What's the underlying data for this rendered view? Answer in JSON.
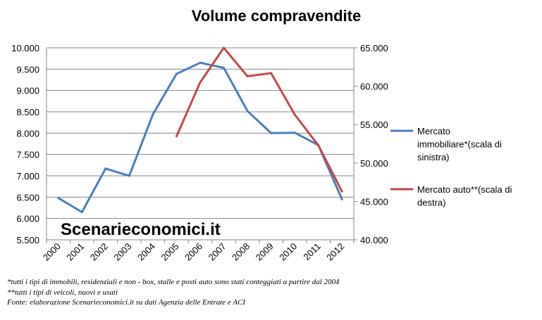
{
  "chart_data": {
    "type": "line",
    "title": "Volume compravendite",
    "categories": [
      "2000",
      "2001",
      "2002",
      "2003",
      "2004",
      "2005",
      "2006",
      "2007",
      "2008",
      "2009",
      "2010",
      "2011",
      "2012"
    ],
    "y_left": {
      "ylim": [
        5500,
        10000
      ],
      "ticks": [
        5500,
        6000,
        6500,
        7000,
        7500,
        8000,
        8500,
        9000,
        9500,
        10000
      ],
      "tick_labels": [
        "5.500",
        "6.000",
        "6.500",
        "7.000",
        "7.500",
        "8.000",
        "8.500",
        "9.000",
        "9.500",
        "10.000"
      ]
    },
    "y_right": {
      "ylim": [
        40000,
        65000
      ],
      "ticks": [
        40000,
        45000,
        50000,
        55000,
        60000,
        65000
      ],
      "tick_labels": [
        "40.000",
        "45.000",
        "50.000",
        "55.000",
        "60.000",
        "65.000"
      ]
    },
    "grid": true,
    "legend_position": "right",
    "series": [
      {
        "name": "Mercato immobiliare*(scala di sinistra)",
        "legend_lines": [
          "Mercato",
          "immobiliare*(scala di",
          "sinistra)"
        ],
        "axis": "left",
        "color": "#4a7ebb",
        "values": [
          6480,
          6150,
          7170,
          7000,
          8440,
          9390,
          9650,
          9530,
          8520,
          8000,
          8010,
          7720,
          6450
        ]
      },
      {
        "name": "Mercato auto**(scala di destra)",
        "legend_lines": [
          "Mercato auto**(scala di",
          "destra)"
        ],
        "axis": "right",
        "color": "#be4b48",
        "values": [
          null,
          null,
          null,
          null,
          null,
          53500,
          60500,
          65000,
          61300,
          61700,
          56300,
          52300,
          46300
        ]
      }
    ],
    "watermark": "Scenarieconomici.it"
  },
  "notes": [
    "*tutti i tipi di immobili, residenziali e non - box, stalle e posti auto sono stati conteggiati a partire dal 2004",
    "**tutti i tipi di veicoli, nuovi e usati",
    "Fonte: elaborazione Scenarieconomici.it su dati Agenzia delle Entrate e ACI"
  ]
}
